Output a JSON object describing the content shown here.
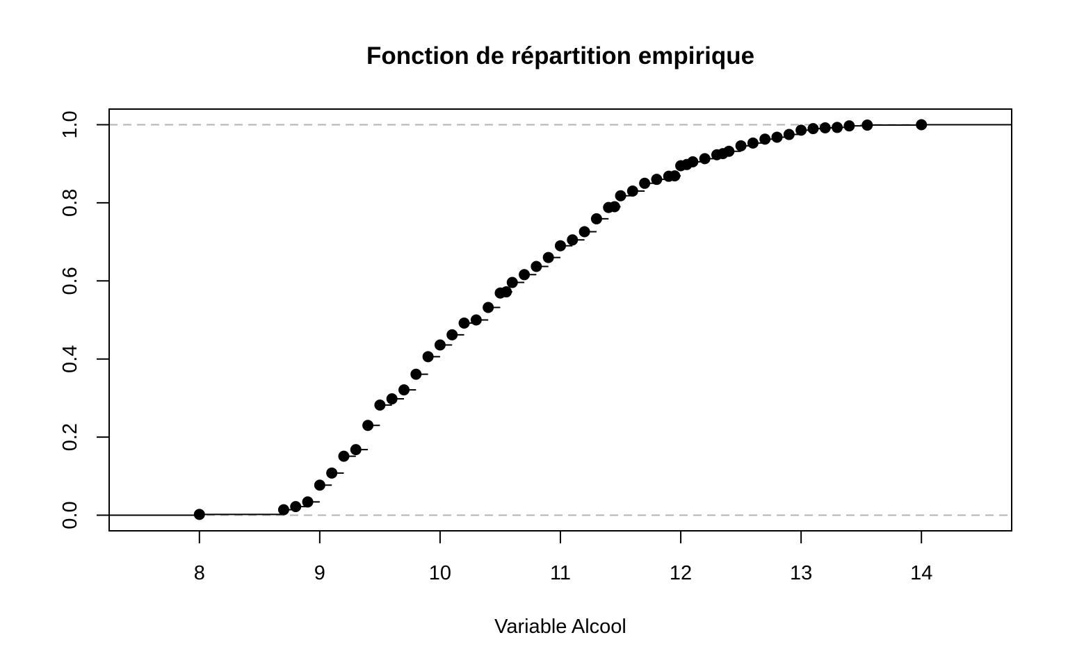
{
  "chart_data": {
    "type": "scatter",
    "title": "Fonction de répartition empirique",
    "xlabel": "Variable Alcool",
    "ylabel": "",
    "xlim": [
      7.25,
      14.75
    ],
    "ylim": [
      -0.04,
      1.04
    ],
    "xticks": [
      "8",
      "9",
      "10",
      "11",
      "12",
      "13",
      "14"
    ],
    "yticks": [
      "0.0",
      "0.2",
      "0.4",
      "0.6",
      "0.8",
      "1.0"
    ],
    "grid": false,
    "reference_lines": [
      0,
      1
    ],
    "colors": {
      "points": "#000000",
      "reference": "#b3b3b3",
      "frame": "#000000"
    },
    "series": [
      {
        "x": [
          8.0,
          8.7,
          8.8,
          8.9,
          9.0,
          9.1,
          9.2,
          9.3,
          9.4,
          9.5,
          9.6,
          9.7,
          9.8,
          9.9,
          10.0,
          10.1,
          10.2,
          10.3,
          10.4,
          10.5,
          10.55,
          10.6,
          10.7,
          10.8,
          10.9,
          11.0,
          11.1,
          11.2,
          11.3,
          11.4,
          11.45,
          11.5,
          11.6,
          11.7,
          11.8,
          11.9,
          11.95,
          12.0,
          12.05,
          12.1,
          12.2,
          12.3,
          12.35,
          12.4,
          12.5,
          12.6,
          12.7,
          12.8,
          12.9,
          13.0,
          13.1,
          13.2,
          13.3,
          13.4,
          13.55,
          14.0
        ],
        "y": [
          0.002,
          0.014,
          0.022,
          0.034,
          0.077,
          0.108,
          0.151,
          0.168,
          0.23,
          0.282,
          0.298,
          0.321,
          0.361,
          0.406,
          0.436,
          0.462,
          0.492,
          0.5,
          0.532,
          0.569,
          0.572,
          0.596,
          0.616,
          0.637,
          0.66,
          0.69,
          0.705,
          0.726,
          0.759,
          0.788,
          0.79,
          0.818,
          0.83,
          0.85,
          0.86,
          0.868,
          0.869,
          0.895,
          0.898,
          0.905,
          0.913,
          0.923,
          0.926,
          0.932,
          0.946,
          0.953,
          0.963,
          0.968,
          0.975,
          0.986,
          0.99,
          0.992,
          0.993,
          0.997,
          0.999,
          1.0
        ]
      }
    ]
  }
}
